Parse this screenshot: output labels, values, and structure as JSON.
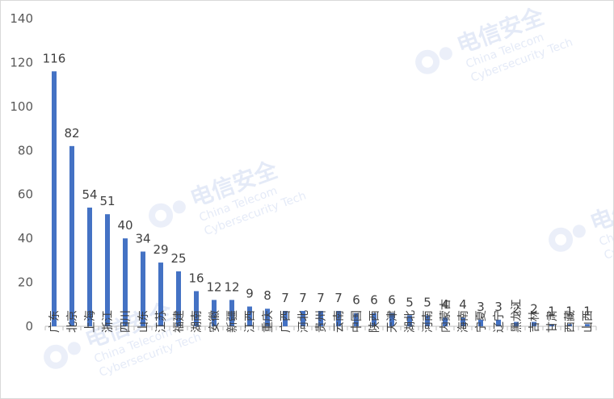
{
  "chart_data": {
    "type": "bar",
    "categories": [
      "广东",
      "北京",
      "上海",
      "浙江",
      "四川",
      "山东",
      "江苏",
      "福建",
      "湖南",
      "安徽",
      "新疆",
      "江西",
      "重庆",
      "广西",
      "河北",
      "贵州",
      "云南",
      "中国",
      "陕西",
      "天津",
      "湖北",
      "河南",
      "内蒙古",
      "海南",
      "宁夏",
      "辽宁",
      "黑龙江",
      "吉林",
      "甘肃",
      "西藏",
      "山西"
    ],
    "values": [
      116,
      82,
      54,
      51,
      40,
      34,
      29,
      25,
      16,
      12,
      12,
      9,
      8,
      7,
      7,
      7,
      7,
      6,
      6,
      6,
      5,
      5,
      4,
      4,
      3,
      3,
      2,
      2,
      1,
      1,
      1
    ],
    "ylim": [
      0,
      140
    ],
    "yticks": [
      0,
      20,
      40,
      60,
      80,
      100,
      120,
      140
    ],
    "grid": false,
    "legend": "none",
    "bar_color": "#4472C4"
  },
  "watermark": {
    "brand": "电信安全",
    "lines": [
      "China Telecom",
      "Cybersecurity Tech"
    ],
    "color": "#6f8fd8"
  }
}
